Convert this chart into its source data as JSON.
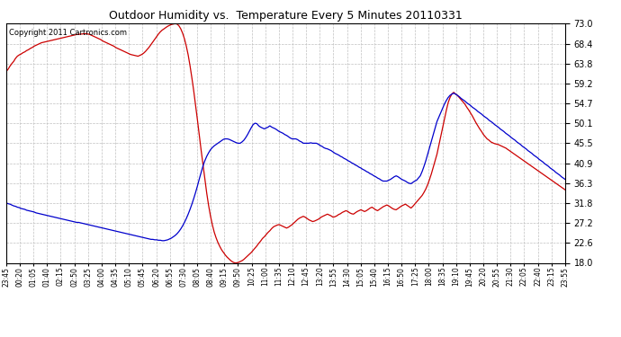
{
  "title": "Outdoor Humidity vs.  Temperature Every 5 Minutes 20110331",
  "copyright": "Copyright 2011 Cartronics.com",
  "bg_color": "#ffffff",
  "grid_color": "#c0c0c0",
  "line_humidity_color": "#cc0000",
  "line_temp_color": "#0000cc",
  "ylim": [
    18.0,
    73.0
  ],
  "yticks": [
    18.0,
    22.6,
    27.2,
    31.8,
    36.3,
    40.9,
    45.5,
    50.1,
    54.7,
    59.2,
    63.8,
    68.4,
    73.0
  ],
  "xtick_labels": [
    "23:45",
    "00:20",
    "01:05",
    "01:40",
    "02:15",
    "02:50",
    "03:25",
    "04:00",
    "04:35",
    "05:10",
    "05:45",
    "06:20",
    "06:55",
    "07:30",
    "08:05",
    "08:40",
    "09:15",
    "09:50",
    "10:25",
    "11:00",
    "11:35",
    "12:10",
    "12:45",
    "13:20",
    "13:55",
    "14:30",
    "15:05",
    "15:40",
    "16:15",
    "16:50",
    "17:25",
    "18:00",
    "18:35",
    "19:10",
    "19:45",
    "20:20",
    "20:55",
    "21:30",
    "22:05",
    "22:40",
    "23:15",
    "23:55"
  ],
  "humidity": [
    62.0,
    62.5,
    63.2,
    63.8,
    64.3,
    65.0,
    65.5,
    65.8,
    66.0,
    66.3,
    66.5,
    66.8,
    67.0,
    67.3,
    67.5,
    67.8,
    68.0,
    68.2,
    68.4,
    68.6,
    68.7,
    68.8,
    68.9,
    69.0,
    69.1,
    69.2,
    69.3,
    69.4,
    69.5,
    69.6,
    69.7,
    69.8,
    69.9,
    70.0,
    70.1,
    70.2,
    70.3,
    70.4,
    70.5,
    70.5,
    70.6,
    70.6,
    70.7,
    70.7,
    70.6,
    70.5,
    70.3,
    70.1,
    69.9,
    69.7,
    69.5,
    69.3,
    69.0,
    68.8,
    68.6,
    68.4,
    68.2,
    68.0,
    67.8,
    67.5,
    67.3,
    67.1,
    66.9,
    66.7,
    66.5,
    66.3,
    66.1,
    65.9,
    65.8,
    65.7,
    65.6,
    65.5,
    65.7,
    65.9,
    66.2,
    66.6,
    67.1,
    67.6,
    68.2,
    68.8,
    69.4,
    70.0,
    70.6,
    71.1,
    71.5,
    71.8,
    72.1,
    72.4,
    72.6,
    72.8,
    72.9,
    73.0,
    72.9,
    72.5,
    71.8,
    70.8,
    69.5,
    67.8,
    65.8,
    63.3,
    60.5,
    57.5,
    54.2,
    50.8,
    47.3,
    43.8,
    40.5,
    37.2,
    34.0,
    31.2,
    28.8,
    26.8,
    25.1,
    23.8,
    22.7,
    21.8,
    21.0,
    20.4,
    19.8,
    19.3,
    18.9,
    18.5,
    18.2,
    18.0,
    18.0,
    18.1,
    18.3,
    18.5,
    18.8,
    19.2,
    19.6,
    20.0,
    20.4,
    20.9,
    21.4,
    21.9,
    22.5,
    23.0,
    23.6,
    24.0,
    24.5,
    25.0,
    25.4,
    25.9,
    26.3,
    26.5,
    26.7,
    26.8,
    26.6,
    26.4,
    26.2,
    26.0,
    26.2,
    26.5,
    26.8,
    27.2,
    27.6,
    28.0,
    28.3,
    28.5,
    28.7,
    28.5,
    28.2,
    27.9,
    27.7,
    27.5,
    27.6,
    27.8,
    28.0,
    28.3,
    28.6,
    28.8,
    29.0,
    29.2,
    29.0,
    28.8,
    28.5,
    28.6,
    28.8,
    29.1,
    29.3,
    29.6,
    29.8,
    30.0,
    29.8,
    29.5,
    29.3,
    29.2,
    29.5,
    29.8,
    30.0,
    30.2,
    30.0,
    29.8,
    30.0,
    30.3,
    30.6,
    30.8,
    30.5,
    30.2,
    30.0,
    30.3,
    30.6,
    30.9,
    31.1,
    31.3,
    31.1,
    30.8,
    30.5,
    30.3,
    30.2,
    30.5,
    30.8,
    31.1,
    31.3,
    31.5,
    31.2,
    30.9,
    30.6,
    31.0,
    31.5,
    32.0,
    32.5,
    33.0,
    33.5,
    34.2,
    35.0,
    36.0,
    37.2,
    38.5,
    40.0,
    41.5,
    43.0,
    45.0,
    47.0,
    49.0,
    51.0,
    53.0,
    54.8,
    56.0,
    56.8,
    57.2,
    56.8,
    56.5,
    56.0,
    55.5,
    55.0,
    54.5,
    53.8,
    53.2,
    52.5,
    51.8,
    51.0,
    50.2,
    49.5,
    48.8,
    48.2,
    47.5,
    47.0,
    46.5,
    46.2,
    45.8,
    45.6,
    45.4,
    45.3,
    45.2,
    45.0,
    44.8,
    44.6,
    44.4,
    44.1,
    43.8,
    43.5,
    43.2,
    42.9,
    42.6,
    42.3,
    42.0,
    41.7,
    41.4,
    41.1,
    40.8,
    40.5,
    40.2,
    39.9,
    39.6,
    39.3,
    39.0,
    38.7,
    38.4,
    38.1,
    37.8,
    37.5,
    37.2,
    36.9,
    36.6,
    36.3,
    36.0,
    35.7,
    35.4,
    35.1,
    34.8
  ],
  "temperature": [
    31.8,
    31.6,
    31.5,
    31.3,
    31.1,
    31.0,
    30.8,
    30.7,
    30.5,
    30.4,
    30.3,
    30.1,
    30.0,
    29.9,
    29.8,
    29.7,
    29.5,
    29.4,
    29.3,
    29.2,
    29.1,
    29.0,
    28.9,
    28.8,
    28.7,
    28.6,
    28.5,
    28.4,
    28.3,
    28.2,
    28.1,
    28.0,
    27.9,
    27.8,
    27.7,
    27.6,
    27.5,
    27.4,
    27.3,
    27.3,
    27.2,
    27.1,
    27.0,
    26.9,
    26.8,
    26.7,
    26.6,
    26.5,
    26.4,
    26.3,
    26.2,
    26.1,
    26.0,
    25.9,
    25.8,
    25.7,
    25.6,
    25.5,
    25.4,
    25.3,
    25.2,
    25.1,
    25.0,
    24.9,
    24.8,
    24.7,
    24.6,
    24.5,
    24.4,
    24.3,
    24.2,
    24.1,
    24.0,
    23.9,
    23.8,
    23.7,
    23.6,
    23.5,
    23.4,
    23.4,
    23.3,
    23.3,
    23.2,
    23.2,
    23.1,
    23.1,
    23.2,
    23.3,
    23.5,
    23.7,
    24.0,
    24.3,
    24.7,
    25.2,
    25.8,
    26.5,
    27.3,
    28.2,
    29.2,
    30.3,
    31.5,
    32.8,
    34.2,
    35.7,
    37.3,
    38.8,
    40.3,
    41.5,
    42.5,
    43.3,
    44.0,
    44.5,
    44.9,
    45.2,
    45.5,
    45.8,
    46.1,
    46.4,
    46.5,
    46.5,
    46.4,
    46.2,
    46.0,
    45.8,
    45.6,
    45.5,
    45.5,
    45.8,
    46.2,
    46.8,
    47.5,
    48.3,
    49.1,
    49.8,
    50.1,
    50.0,
    49.5,
    49.2,
    49.0,
    48.8,
    49.0,
    49.2,
    49.5,
    49.2,
    49.0,
    48.8,
    48.5,
    48.2,
    48.0,
    47.8,
    47.5,
    47.3,
    47.0,
    46.7,
    46.5,
    46.5,
    46.5,
    46.3,
    46.0,
    45.8,
    45.5,
    45.5,
    45.5,
    45.5,
    45.6,
    45.5,
    45.5,
    45.5,
    45.3,
    45.0,
    44.8,
    44.5,
    44.3,
    44.2,
    44.0,
    43.8,
    43.5,
    43.2,
    43.0,
    42.8,
    42.5,
    42.3,
    42.0,
    41.8,
    41.5,
    41.3,
    41.0,
    40.8,
    40.5,
    40.3,
    40.0,
    39.8,
    39.5,
    39.3,
    39.0,
    38.8,
    38.5,
    38.3,
    38.0,
    37.8,
    37.5,
    37.3,
    37.0,
    36.8,
    36.8,
    36.8,
    37.0,
    37.2,
    37.5,
    37.8,
    38.0,
    37.8,
    37.5,
    37.2,
    37.0,
    36.8,
    36.5,
    36.3,
    36.2,
    36.5,
    36.8,
    37.0,
    37.5,
    38.0,
    39.0,
    40.2,
    41.5,
    43.0,
    44.5,
    46.0,
    47.5,
    49.0,
    50.5,
    51.5,
    52.5,
    53.5,
    54.5,
    55.3,
    56.0,
    56.5,
    56.8,
    57.0,
    56.8,
    56.5,
    56.2,
    55.8,
    55.5,
    55.2,
    54.8,
    54.5,
    54.2,
    53.8,
    53.5,
    53.2,
    52.8,
    52.5,
    52.2,
    51.8,
    51.5,
    51.2,
    50.8,
    50.5,
    50.2,
    49.8,
    49.5,
    49.2,
    48.8,
    48.5,
    48.2,
    47.8,
    47.5,
    47.2,
    46.8,
    46.5,
    46.2,
    45.8,
    45.5,
    45.2,
    44.8,
    44.5,
    44.2,
    43.8,
    43.5,
    43.2,
    42.8,
    42.5,
    42.2,
    41.8,
    41.5,
    41.2,
    40.8,
    40.5,
    40.2,
    39.8,
    39.5,
    39.2,
    38.8,
    38.5,
    38.2,
    37.8,
    37.5,
    37.2
  ]
}
